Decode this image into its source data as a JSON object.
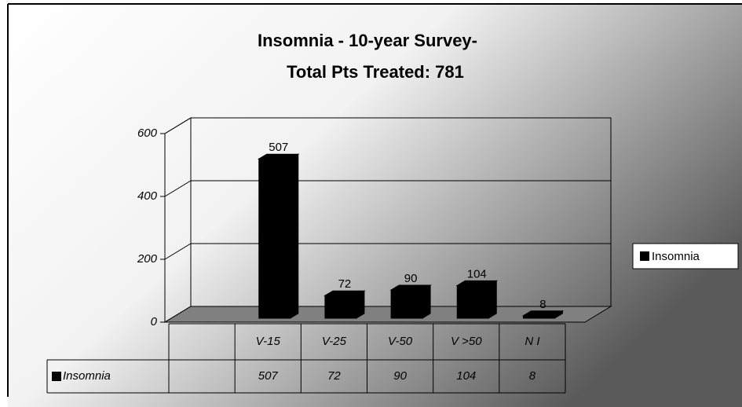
{
  "chart_data": {
    "type": "bar3d",
    "title": "Insomnia - 10-year Survey-",
    "subtitle": "Total Pts Treated: 781",
    "categories": [
      null,
      "V-15",
      "V-25",
      "V-50",
      "V >50",
      "N I"
    ],
    "series": [
      {
        "name": "Insomnia",
        "color": "#000000",
        "values": [
          null,
          507,
          72,
          90,
          104,
          8
        ]
      }
    ],
    "ylim": [
      0,
      600
    ],
    "yticks": [
      0,
      200,
      400,
      600
    ],
    "grid": true,
    "legend": "right",
    "data_table": true
  }
}
